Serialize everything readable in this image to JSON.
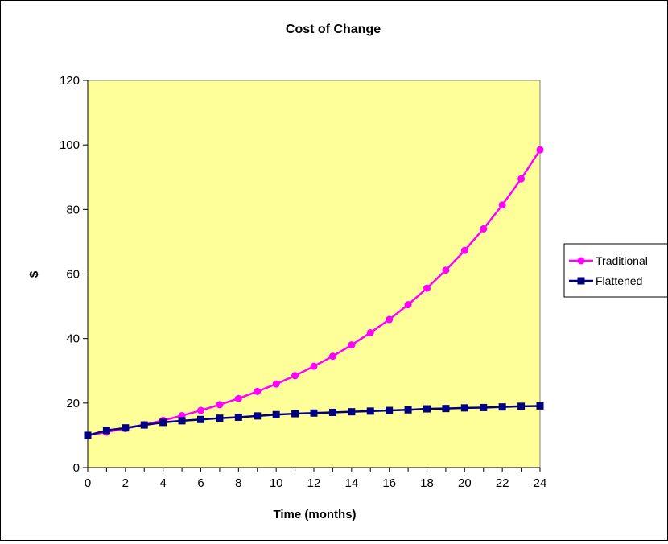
{
  "chart_data": {
    "type": "line",
    "title": "Cost of Change",
    "xlabel": "Time (months)",
    "ylabel": "$",
    "x": [
      0,
      1,
      2,
      3,
      4,
      5,
      6,
      7,
      8,
      9,
      10,
      11,
      12,
      13,
      14,
      15,
      16,
      17,
      18,
      19,
      20,
      21,
      22,
      23,
      24
    ],
    "xlim": [
      0,
      24
    ],
    "ylim": [
      0,
      120
    ],
    "x_ticks": [
      0,
      2,
      4,
      6,
      8,
      10,
      12,
      14,
      16,
      18,
      20,
      22,
      24
    ],
    "y_ticks": [
      0,
      20,
      40,
      60,
      80,
      100,
      120
    ],
    "grid": false,
    "plot_background": "#FFFF99",
    "legend_position": "right",
    "series": [
      {
        "name": "Traditional",
        "color": "#FF00FF",
        "marker": "circle",
        "values": [
          10,
          11,
          12.1,
          13.3,
          14.6,
          16.1,
          17.7,
          19.5,
          21.4,
          23.6,
          25.9,
          28.5,
          31.4,
          34.5,
          38,
          41.8,
          45.9,
          50.5,
          55.6,
          61.2,
          67.3,
          74,
          81.4,
          89.5,
          98.5
        ]
      },
      {
        "name": "Flattened",
        "color": "#000080",
        "marker": "square",
        "values": [
          10,
          11.5,
          12.3,
          13.2,
          14,
          14.5,
          14.9,
          15.3,
          15.6,
          16,
          16.4,
          16.7,
          16.9,
          17.1,
          17.3,
          17.5,
          17.7,
          17.9,
          18.2,
          18.3,
          18.5,
          18.6,
          18.8,
          19,
          19.1
        ]
      }
    ]
  }
}
